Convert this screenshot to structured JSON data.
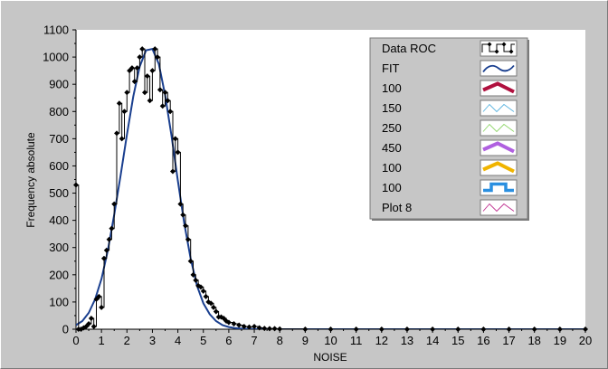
{
  "chart_data": {
    "type": "line",
    "title": "",
    "xlabel": "NOISE",
    "ylabel": "Frequency absolute",
    "xlim": [
      0,
      20
    ],
    "ylim": [
      0,
      1100
    ],
    "x_ticks": [
      "0",
      "1",
      "2",
      "3",
      "4",
      "5",
      "6",
      "7",
      "8",
      "9",
      "10",
      "11",
      "12",
      "13",
      "14",
      "15",
      "16",
      "17",
      "18",
      "19",
      "20"
    ],
    "y_ticks": [
      "0",
      "100",
      "200",
      "300",
      "400",
      "500",
      "600",
      "700",
      "800",
      "900",
      "1000",
      "1100"
    ],
    "grid": false,
    "legend_position": "top-right",
    "series": [
      {
        "name": "Data ROC",
        "color": "#000000",
        "style": "step-with-diamond-markers",
        "x": [
          0.0,
          0.1,
          0.2,
          0.3,
          0.4,
          0.5,
          0.6,
          0.7,
          0.8,
          0.9,
          1.0,
          1.1,
          1.2,
          1.3,
          1.4,
          1.5,
          1.6,
          1.7,
          1.8,
          1.9,
          2.0,
          2.1,
          2.2,
          2.3,
          2.4,
          2.5,
          2.6,
          2.7,
          2.8,
          2.9,
          3.0,
          3.1,
          3.2,
          3.3,
          3.4,
          3.5,
          3.6,
          3.7,
          3.8,
          3.9,
          4.0,
          4.1,
          4.2,
          4.3,
          4.4,
          4.5,
          4.6,
          4.7,
          4.8,
          4.9,
          5.0,
          5.1,
          5.2,
          5.3,
          5.4,
          5.5,
          5.6,
          5.7,
          5.8,
          5.9,
          6.0,
          6.2,
          6.4,
          6.6,
          6.8,
          7.0,
          7.2,
          7.4,
          7.6,
          7.8,
          8.0,
          9.0,
          10.0,
          11.0,
          12.0,
          13.0,
          14.0,
          15.0,
          16.0,
          17.0,
          18.0,
          19.0,
          20.0
        ],
        "values": [
          530,
          0,
          0,
          5,
          10,
          20,
          40,
          10,
          110,
          120,
          80,
          260,
          290,
          330,
          370,
          460,
          720,
          830,
          700,
          800,
          870,
          950,
          960,
          910,
          960,
          1000,
          1030,
          870,
          930,
          840,
          950,
          1030,
          1000,
          880,
          820,
          870,
          840,
          800,
          580,
          700,
          650,
          460,
          420,
          380,
          330,
          250,
          200,
          180,
          160,
          155,
          140,
          120,
          100,
          95,
          80,
          65,
          45,
          45,
          40,
          30,
          25,
          20,
          15,
          10,
          8,
          10,
          5,
          3,
          2,
          2,
          1,
          0,
          0,
          0,
          0,
          0,
          0,
          0,
          0,
          0,
          0,
          0,
          0
        ]
      },
      {
        "name": "FIT",
        "color": "#1a3f8f",
        "style": "line",
        "x": [
          0.0,
          0.25,
          0.5,
          0.75,
          1.0,
          1.25,
          1.5,
          1.75,
          2.0,
          2.25,
          2.5,
          2.75,
          3.0,
          3.25,
          3.5,
          3.75,
          4.0,
          4.25,
          4.5,
          4.75,
          5.0,
          5.25,
          5.5,
          5.75,
          6.0,
          6.25,
          6.5,
          6.75,
          7.0,
          7.5,
          8.0,
          9.0,
          10.0,
          12.0,
          14.0,
          16.0,
          18.0,
          20.0
        ],
        "values": [
          15,
          30,
          60,
          110,
          185,
          290,
          420,
          565,
          715,
          855,
          965,
          1025,
          1030,
          975,
          860,
          710,
          545,
          390,
          260,
          160,
          95,
          55,
          30,
          15,
          8,
          4,
          2,
          1,
          0,
          0,
          0,
          0,
          0,
          0,
          0,
          0,
          0,
          0
        ]
      }
    ],
    "legend": [
      {
        "label": "Data ROC",
        "color": "#000000",
        "style": "step"
      },
      {
        "label": "FIT",
        "color": "#1a3f8f",
        "style": "wave"
      },
      {
        "label": "100",
        "color": "#b0103e",
        "style": "wave-thick"
      },
      {
        "label": "150",
        "color": "#5ab4e0",
        "style": "zigzag-thin"
      },
      {
        "label": "250",
        "color": "#8fd66a",
        "style": "zigzag-thin"
      },
      {
        "label": "450",
        "color": "#b060e0",
        "style": "wave-thick"
      },
      {
        "label": "100",
        "color": "#f0b400",
        "style": "wave-thick"
      },
      {
        "label": "100",
        "color": "#2a8fe0",
        "style": "square"
      },
      {
        "label": "Plot 8",
        "color": "#c03090",
        "style": "zigzag-thin"
      }
    ]
  }
}
